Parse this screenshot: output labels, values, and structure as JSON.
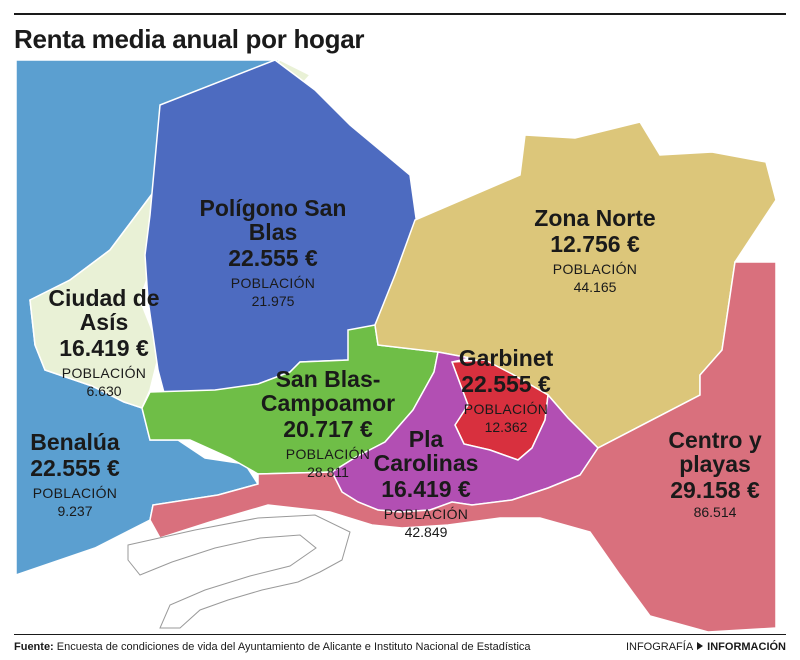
{
  "title": "Renta media anual por hogar",
  "population_label": "POBLACIÓN",
  "districts": [
    {
      "id": "benalua",
      "name_lines": [
        "Benalúa"
      ],
      "rent": "22.555 €",
      "population": "9.237",
      "color": "#5b9fd0"
    },
    {
      "id": "ciudad-de-asis",
      "name_lines": [
        "Ciudad de",
        "Asís"
      ],
      "rent": "16.419 €",
      "population": "6.630",
      "color": "#e9f1d6"
    },
    {
      "id": "poligono-san-blas",
      "name_lines": [
        "Polígono San",
        "Blas"
      ],
      "rent": "22.555 €",
      "population": "21.975",
      "color": "#4d6bc0"
    },
    {
      "id": "san-blas-campoamor",
      "name_lines": [
        "San Blas-",
        "Campoamor"
      ],
      "rent": "20.717 €",
      "population": "28.811",
      "color": "#6fbe47"
    },
    {
      "id": "zona-norte",
      "name_lines": [
        "Zona Norte"
      ],
      "rent": "12.756 €",
      "population": "44.165",
      "color": "#dcc67a"
    },
    {
      "id": "garbinet",
      "name_lines": [
        "Garbinet"
      ],
      "rent": "22.555 €",
      "population": "12.362",
      "color": "#d8303e"
    },
    {
      "id": "pla-carolinas",
      "name_lines": [
        "Pla",
        "Carolinas"
      ],
      "rent": "16.419 €",
      "population": "42.849",
      "color": "#b24fb3"
    },
    {
      "id": "centro-y-playas",
      "name_lines": [
        "Centro y",
        "playas"
      ],
      "rent": "29.158 €",
      "population": "86.514",
      "color": "#d9707d"
    }
  ],
  "footer": {
    "source_label": "Fuente:",
    "source_text": "Encuesta de condiciones de vida del Ayuntamiento de Alicante e Instituto Nacional de Estadística",
    "credit_prefix": "INFOGRAFÍA",
    "credit_brand": "INFORMACIÓN"
  }
}
